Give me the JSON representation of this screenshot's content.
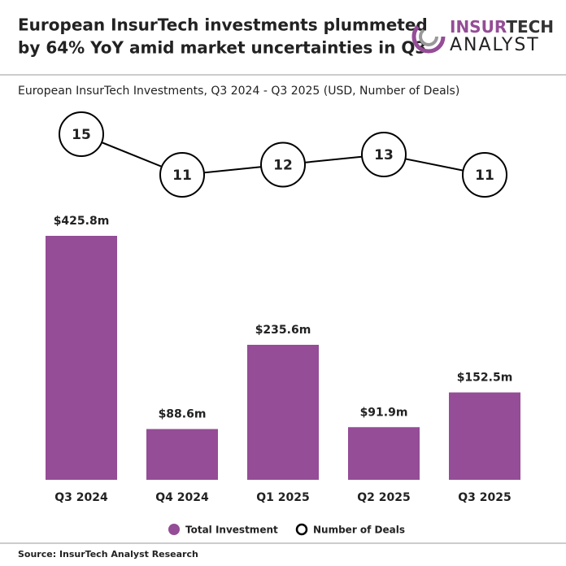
{
  "header": {
    "title": [
      "European InsurTech investments plummeted",
      "by 64% YoY amid market uncertainties in Q3"
    ],
    "logo": [
      "INSUR",
      "TECH",
      "ANALYST"
    ]
  },
  "chart_data": {
    "type": "bar",
    "subtitle": "European InsurTech Investments, Q3 2024 - Q3 2025 (USD, Number of Deals)",
    "categories": [
      "Q3 2024",
      "Q4 2024",
      "Q1 2025",
      "Q2 2025",
      "Q3 2025"
    ],
    "series": [
      {
        "name": "Total Investment",
        "type": "bar",
        "color": "#944d96",
        "values": [
          425.8,
          88.6,
          235.6,
          91.9,
          152.5
        ],
        "value_labels": [
          "$425.8m",
          "$88.6m",
          "$235.6m",
          "$91.9m",
          "$152.5m"
        ]
      },
      {
        "name": "Number of Deals",
        "type": "line",
        "axis": "y2",
        "color": "#000000",
        "values": [
          15,
          11,
          12,
          13,
          11
        ]
      }
    ],
    "legend": "bottom"
  },
  "footer": {
    "source": "Source: InsurTech Analyst Research"
  }
}
